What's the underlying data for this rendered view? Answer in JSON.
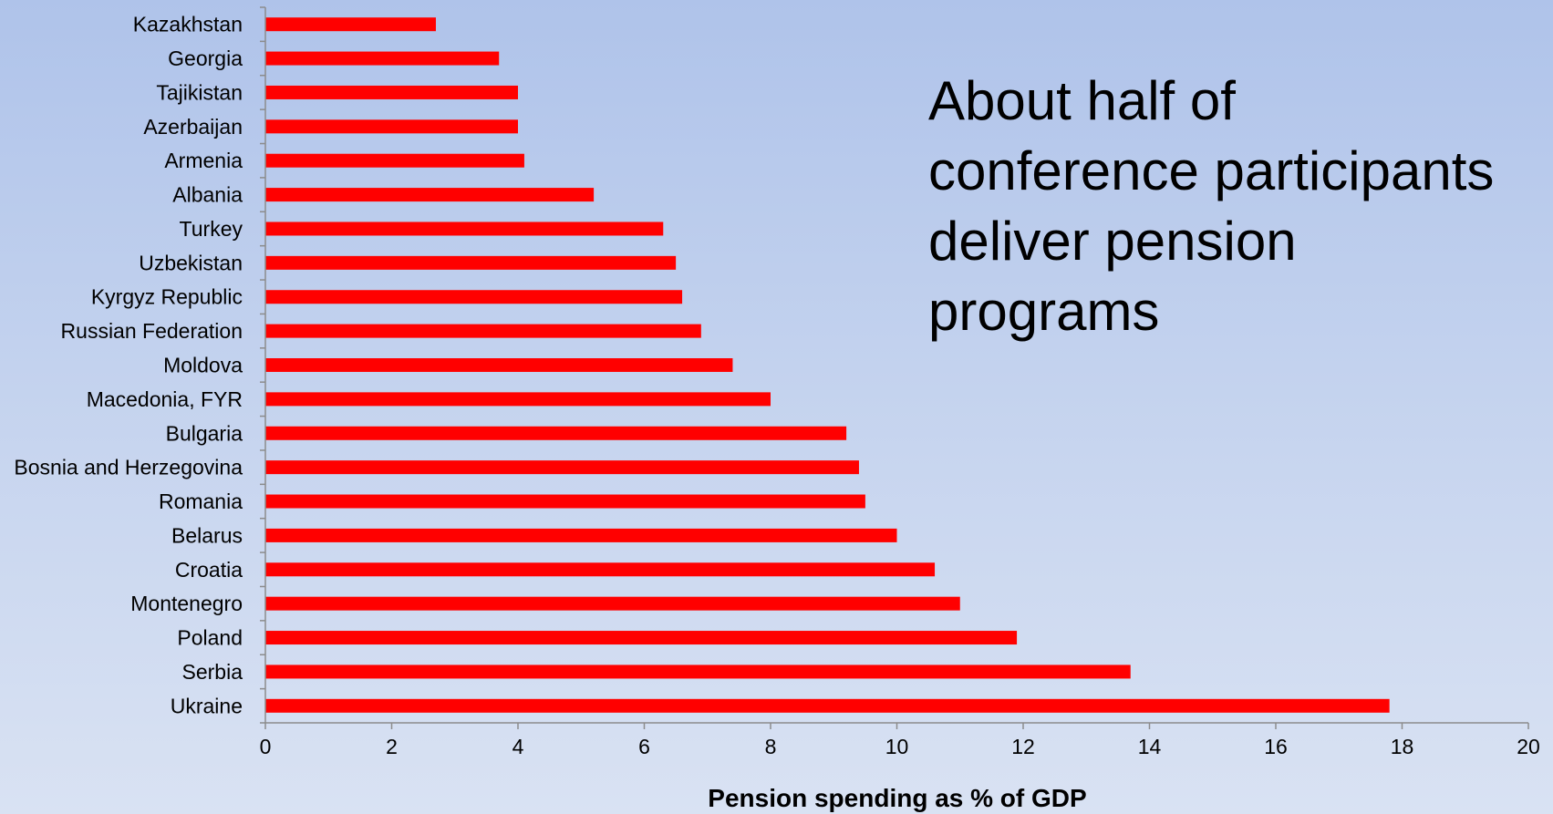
{
  "annotation": "About half of conference participants deliver pension programs",
  "chart_data": {
    "type": "bar",
    "orientation": "horizontal",
    "xlabel": "Pension spending as % of GDP",
    "ylabel": "",
    "title": "",
    "xlim": [
      0,
      20
    ],
    "xticks": [
      0,
      2,
      4,
      6,
      8,
      10,
      12,
      14,
      16,
      18,
      20
    ],
    "categories": [
      "Kazakhstan",
      "Georgia",
      "Tajikistan",
      "Azerbaijan",
      "Armenia",
      "Albania",
      "Turkey",
      "Uzbekistan",
      "Kyrgyz Republic",
      "Russian Federation",
      "Moldova",
      "Macedonia, FYR",
      "Bulgaria",
      "Bosnia and Herzegovina",
      "Romania",
      "Belarus",
      "Croatia",
      "Montenegro",
      "Poland",
      "Serbia",
      "Ukraine"
    ],
    "values": [
      2.7,
      3.7,
      4.0,
      4.0,
      4.1,
      5.2,
      6.3,
      6.5,
      6.6,
      6.9,
      7.4,
      8.0,
      9.2,
      9.4,
      9.5,
      10.0,
      10.6,
      11.0,
      11.9,
      13.7,
      17.8
    ],
    "bar_color": "#ff0000",
    "grid": false,
    "legend": "none"
  }
}
